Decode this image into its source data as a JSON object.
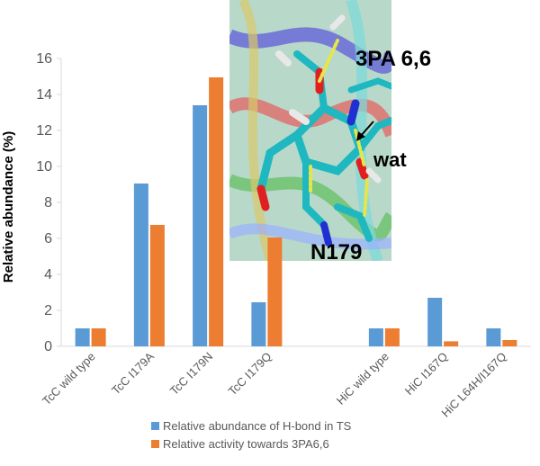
{
  "chart_data": {
    "type": "bar",
    "title": "",
    "xlabel": "",
    "ylabel": "Relative abundance (%)",
    "ylim": [
      0,
      16
    ],
    "yticks": [
      0,
      2,
      4,
      6,
      8,
      10,
      12,
      14,
      16
    ],
    "grid": false,
    "legend_position": "bottom",
    "categories": [
      "TcC wild type",
      "TcC I179A",
      "TcC I179N",
      "TcC I179Q",
      "",
      "HiC wild type",
      "HiC I167Q",
      "HiC L64H/I167Q"
    ],
    "series": [
      {
        "name": "Relative abundance of H-bond in TS",
        "color": "#5B9BD5",
        "values": [
          1.0,
          9.05,
          13.4,
          2.45,
          null,
          1.0,
          2.7,
          1.0
        ]
      },
      {
        "name": "Relative activity towards 3PA6,6",
        "color": "#ED7D31",
        "values": [
          1.0,
          6.75,
          14.95,
          6.05,
          null,
          1.0,
          0.28,
          0.35
        ]
      }
    ]
  },
  "inset": {
    "labels": {
      "substrate": "3PA 6,6",
      "water": "wat",
      "residue": "N179"
    },
    "icons": [
      "molecular-structure-icon"
    ]
  }
}
